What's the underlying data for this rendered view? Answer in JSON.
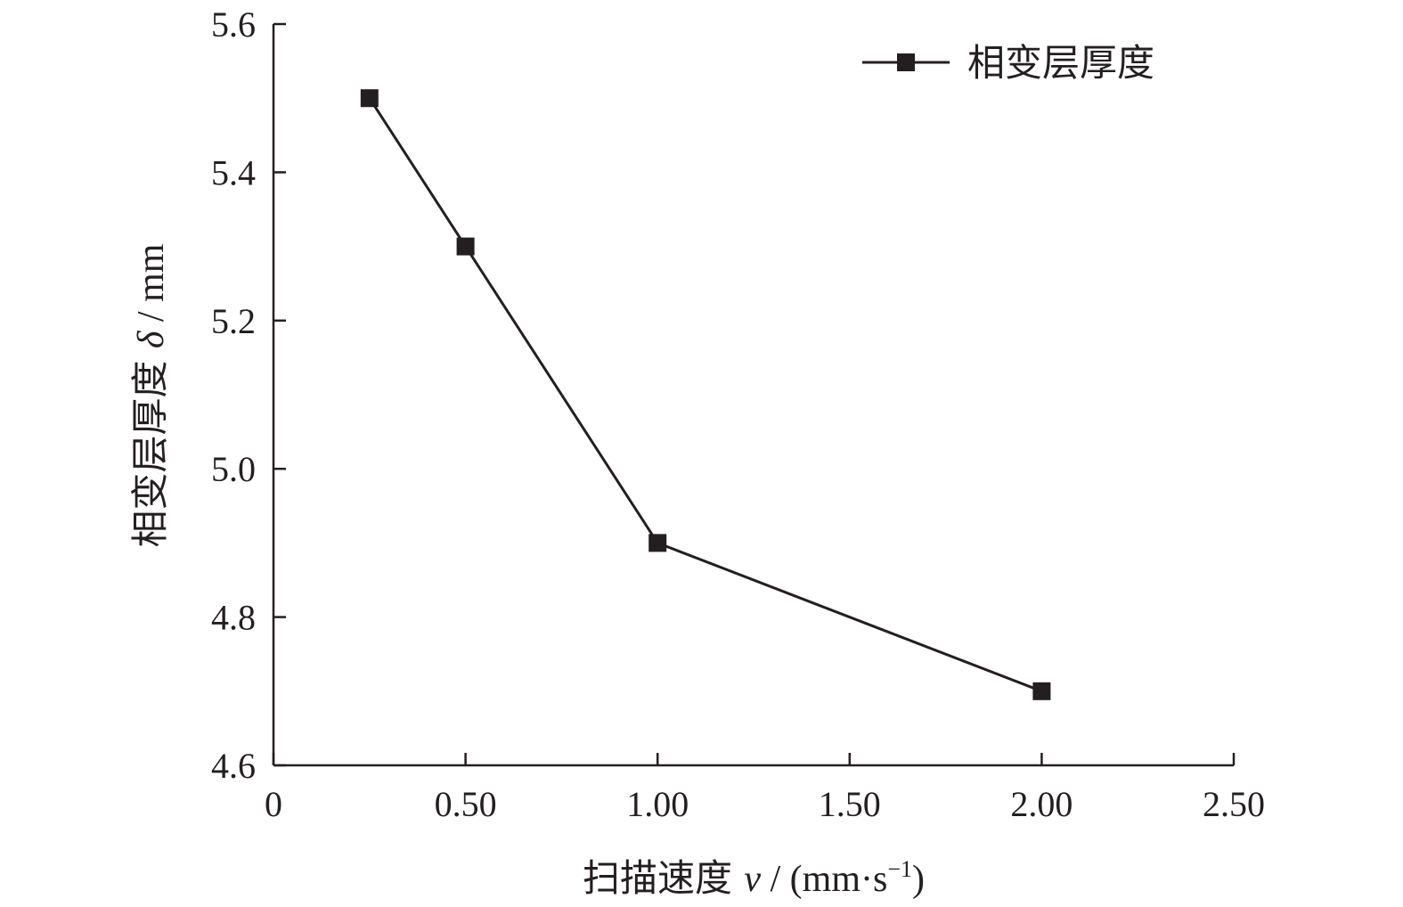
{
  "chart_data": {
    "type": "line",
    "title": "",
    "xlabel": {
      "prefix": "扫描速度 ",
      "symbol": "v",
      "unit": " / (mm·s",
      "sup": "−1",
      "close": ")"
    },
    "ylabel": {
      "prefix": "相变层厚度 ",
      "symbol": "δ",
      "unit": " / mm"
    },
    "xlim": [
      0,
      2.5
    ],
    "ylim": [
      4.6,
      5.6
    ],
    "x_ticks": [
      0,
      0.5,
      1.0,
      1.5,
      2.0,
      2.5
    ],
    "x_tick_labels": [
      "0",
      "0.50",
      "1.00",
      "1.50",
      "2.00",
      "2.50"
    ],
    "y_ticks": [
      4.6,
      4.8,
      5.0,
      5.2,
      5.4,
      5.6
    ],
    "y_tick_labels": [
      "4.6",
      "4.8",
      "5.0",
      "5.2",
      "5.4",
      "5.6"
    ],
    "grid": false,
    "legend_position": "top-right",
    "series": [
      {
        "name": "相变层厚度",
        "color": "#231f20",
        "marker": "square",
        "x": [
          0.25,
          0.5,
          1.0,
          2.0
        ],
        "y": [
          5.5,
          5.3,
          4.9,
          4.7
        ]
      }
    ]
  }
}
